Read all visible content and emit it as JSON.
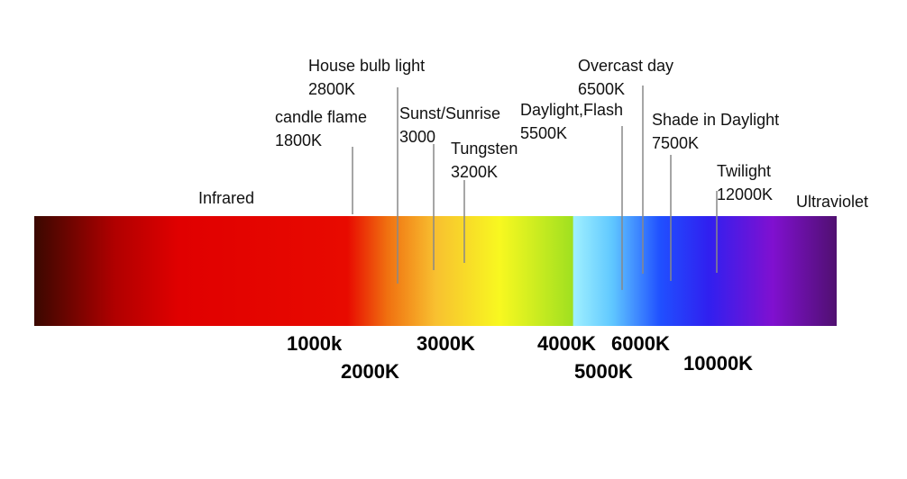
{
  "ends": {
    "left": "Infrared",
    "right": "Ultraviolet"
  },
  "markers": [
    {
      "name": "candle flame",
      "temp": "1800K"
    },
    {
      "name": "House bulb light",
      "temp": "2800K"
    },
    {
      "name": "Sunst/Sunrise",
      "temp": "3000"
    },
    {
      "name": "Tungsten",
      "temp": "3200K"
    },
    {
      "name": "Daylight,Flash",
      "temp": "5500K"
    },
    {
      "name": "Overcast day",
      "temp": "6500K"
    },
    {
      "name": "Shade in Daylight",
      "temp": "7500K"
    },
    {
      "name": "Twilight",
      "temp": "12000K"
    }
  ],
  "scale_labels": [
    "1000k",
    "2000K",
    "3000K",
    "4000K",
    "6000K",
    "5000K",
    "10000K"
  ]
}
